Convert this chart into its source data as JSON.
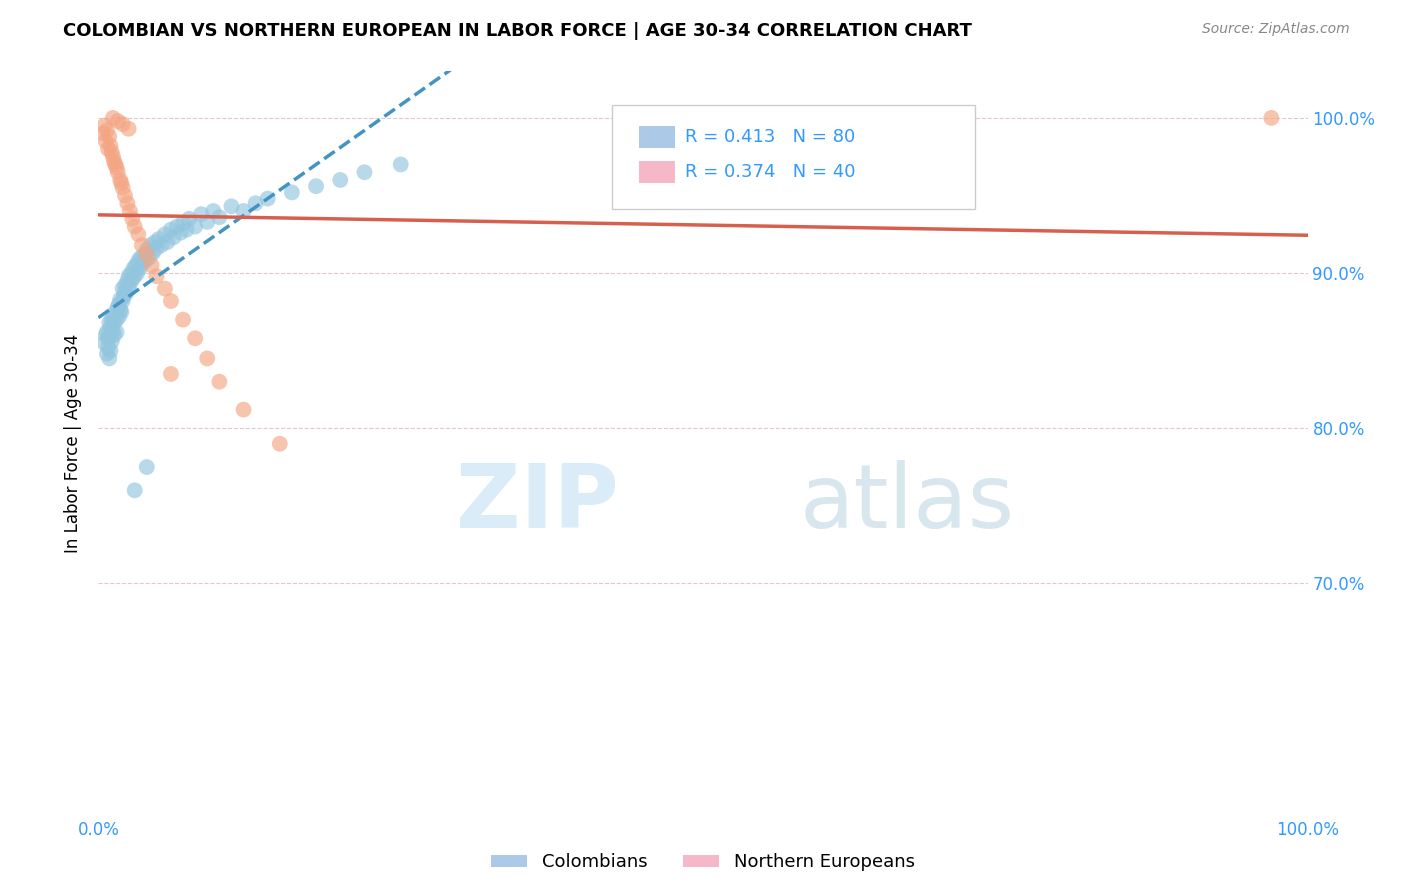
{
  "title": "COLOMBIAN VS NORTHERN EUROPEAN IN LABOR FORCE | AGE 30-34 CORRELATION CHART",
  "source": "Source: ZipAtlas.com",
  "ylabel": "In Labor Force | Age 30-34",
  "xlim": [
    0.0,
    1.0
  ],
  "ylim": [
    0.55,
    1.03
  ],
  "yticks": [
    0.7,
    0.8,
    0.9,
    1.0
  ],
  "ytick_labels": [
    "70.0%",
    "80.0%",
    "90.0%",
    "100.0%"
  ],
  "xtick_labels_left": "0.0%",
  "xtick_labels_right": "100.0%",
  "legend_colombians": "Colombians",
  "legend_northern_europeans": "Northern Europeans",
  "R_colombians": 0.413,
  "N_colombians": 80,
  "R_northern": 0.374,
  "N_northern": 40,
  "blue_color": "#92c5de",
  "pink_color": "#f4a582",
  "blue_line_color": "#4393c3",
  "pink_line_color": "#d6604d",
  "colombians_x": [
    0.005,
    0.006,
    0.007,
    0.007,
    0.008,
    0.008,
    0.009,
    0.009,
    0.01,
    0.01,
    0.011,
    0.011,
    0.012,
    0.012,
    0.013,
    0.013,
    0.014,
    0.015,
    0.015,
    0.016,
    0.017,
    0.017,
    0.018,
    0.018,
    0.019,
    0.02,
    0.02,
    0.021,
    0.022,
    0.022,
    0.023,
    0.024,
    0.025,
    0.025,
    0.026,
    0.027,
    0.028,
    0.029,
    0.03,
    0.031,
    0.032,
    0.033,
    0.034,
    0.035,
    0.036,
    0.038,
    0.039,
    0.04,
    0.042,
    0.043,
    0.045,
    0.047,
    0.048,
    0.05,
    0.052,
    0.055,
    0.057,
    0.06,
    0.062,
    0.065,
    0.068,
    0.07,
    0.073,
    0.075,
    0.08,
    0.085,
    0.09,
    0.095,
    0.1,
    0.11,
    0.12,
    0.13,
    0.14,
    0.16,
    0.18,
    0.2,
    0.22,
    0.25,
    0.03,
    0.04
  ],
  "colombians_y": [
    0.855,
    0.86,
    0.848,
    0.862,
    0.852,
    0.858,
    0.845,
    0.868,
    0.85,
    0.865,
    0.87,
    0.856,
    0.863,
    0.872,
    0.86,
    0.868,
    0.875,
    0.862,
    0.87,
    0.878,
    0.872,
    0.88,
    0.876,
    0.883,
    0.875,
    0.882,
    0.89,
    0.885,
    0.888,
    0.892,
    0.887,
    0.895,
    0.89,
    0.898,
    0.893,
    0.9,
    0.896,
    0.903,
    0.898,
    0.905,
    0.9,
    0.908,
    0.903,
    0.91,
    0.906,
    0.912,
    0.908,
    0.915,
    0.91,
    0.918,
    0.913,
    0.92,
    0.916,
    0.922,
    0.918,
    0.925,
    0.92,
    0.928,
    0.923,
    0.93,
    0.926,
    0.932,
    0.928,
    0.935,
    0.93,
    0.938,
    0.933,
    0.94,
    0.936,
    0.943,
    0.94,
    0.945,
    0.948,
    0.952,
    0.956,
    0.96,
    0.965,
    0.97,
    0.76,
    0.775
  ],
  "northern_x": [
    0.004,
    0.005,
    0.006,
    0.007,
    0.008,
    0.009,
    0.01,
    0.011,
    0.012,
    0.013,
    0.014,
    0.015,
    0.016,
    0.018,
    0.019,
    0.02,
    0.022,
    0.024,
    0.026,
    0.028,
    0.03,
    0.033,
    0.036,
    0.04,
    0.044,
    0.048,
    0.055,
    0.06,
    0.07,
    0.08,
    0.09,
    0.1,
    0.12,
    0.15,
    0.012,
    0.016,
    0.02,
    0.025,
    0.06,
    0.97
  ],
  "northern_y": [
    0.99,
    0.995,
    0.985,
    0.992,
    0.98,
    0.988,
    0.982,
    0.978,
    0.975,
    0.972,
    0.97,
    0.968,
    0.965,
    0.96,
    0.958,
    0.955,
    0.95,
    0.945,
    0.94,
    0.935,
    0.93,
    0.925,
    0.918,
    0.912,
    0.905,
    0.898,
    0.89,
    0.882,
    0.87,
    0.858,
    0.845,
    0.83,
    0.812,
    0.79,
    1.0,
    0.998,
    0.996,
    0.993,
    0.835,
    1.0
  ]
}
